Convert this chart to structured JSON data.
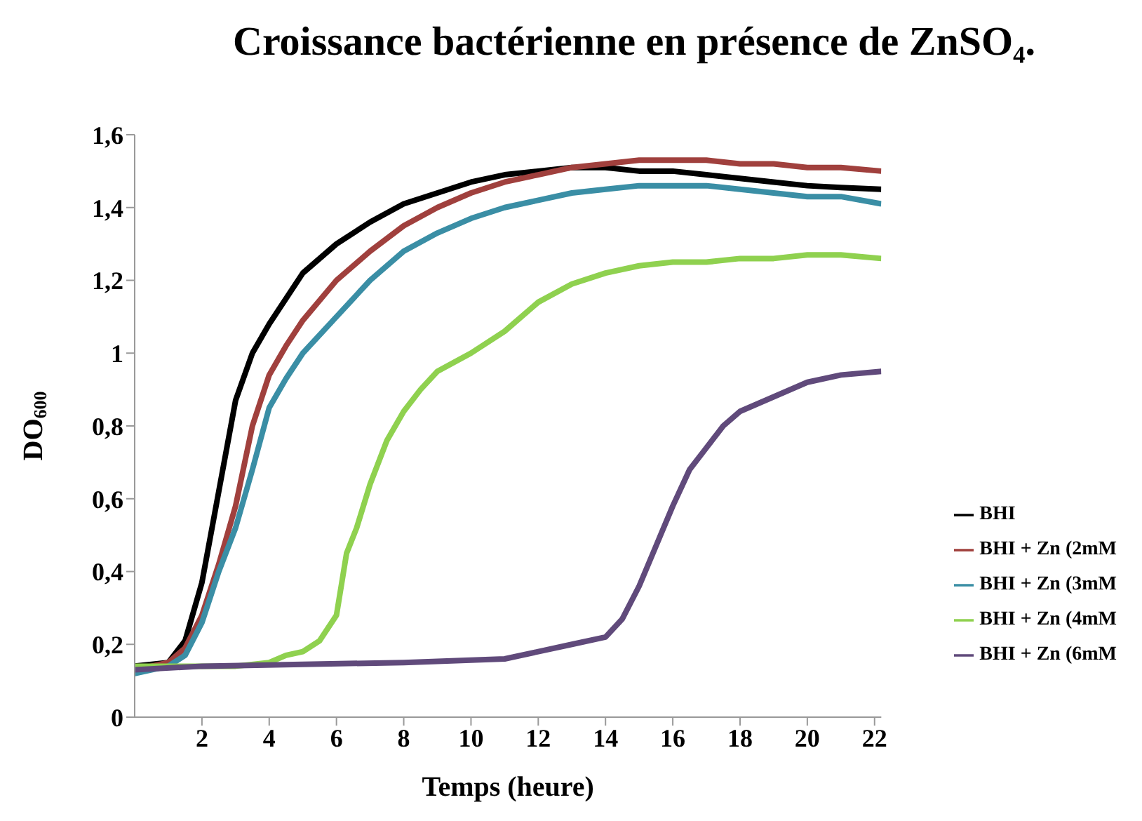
{
  "chart_data": {
    "type": "line",
    "title": "Croissance bactérienne en présence de  ZnSO₄.",
    "xlabel": "Temps (heure)",
    "ylabel": "DO$_{600}$",
    "xlim": [
      0,
      22.2
    ],
    "xticks": [
      2,
      4,
      6,
      8,
      10,
      12,
      14,
      16,
      18,
      20,
      22
    ],
    "ylim": [
      0,
      1.6
    ],
    "yticks": [
      0,
      {
        "value": 0.2,
        "label": "0,2"
      },
      {
        "value": 0.4,
        "label": "0,4"
      },
      {
        "value": 0.6,
        "label": "0,6"
      },
      {
        "value": 0.8,
        "label": "0,8"
      },
      1,
      {
        "value": 1.2,
        "label": "1,2"
      },
      {
        "value": 1.4,
        "label": "1,4"
      },
      {
        "value": 1.6,
        "label": "1,6"
      }
    ],
    "grid": false,
    "legend": "bottom right",
    "marker": "none",
    "line_style": "solid",
    "series": [
      {
        "name": "BHI",
        "color": "#000000",
        "x": [
          0,
          1,
          1.5,
          2,
          2.5,
          3,
          3.5,
          4,
          5,
          6,
          7,
          8,
          9,
          10,
          11,
          12,
          13,
          14,
          15,
          16,
          17,
          18,
          19,
          20,
          21,
          22.2
        ],
        "values": [
          0.14,
          0.15,
          0.21,
          0.37,
          0.62,
          0.87,
          1.0,
          1.08,
          1.22,
          1.3,
          1.36,
          1.41,
          1.44,
          1.47,
          1.49,
          1.5,
          1.51,
          1.51,
          1.5,
          1.5,
          1.49,
          1.48,
          1.47,
          1.46,
          1.455,
          1.45
        ]
      },
      {
        "name": "BHI + Zn (2mM",
        "color": "#a0403d",
        "x": [
          0,
          1,
          1.5,
          2,
          2.5,
          3,
          3.5,
          4,
          4.5,
          5,
          6,
          7,
          8,
          9,
          10,
          11,
          12,
          13,
          14,
          15,
          16,
          17,
          18,
          19,
          20,
          21,
          22.2
        ],
        "values": [
          0.13,
          0.15,
          0.19,
          0.28,
          0.42,
          0.58,
          0.8,
          0.94,
          1.02,
          1.09,
          1.2,
          1.28,
          1.35,
          1.4,
          1.44,
          1.47,
          1.49,
          1.51,
          1.52,
          1.53,
          1.53,
          1.53,
          1.52,
          1.52,
          1.51,
          1.51,
          1.5
        ]
      },
      {
        "name": "BHI + Zn (3mM",
        "color": "#3a8ea5",
        "x": [
          0,
          1,
          1.5,
          2,
          2.5,
          3,
          3.5,
          4,
          4.5,
          5,
          6,
          7,
          8,
          9,
          10,
          11,
          12,
          13,
          14,
          15,
          16,
          17,
          18,
          19,
          20,
          21,
          22.2
        ],
        "values": [
          0.12,
          0.14,
          0.17,
          0.26,
          0.4,
          0.52,
          0.68,
          0.85,
          0.93,
          1.0,
          1.1,
          1.2,
          1.28,
          1.33,
          1.37,
          1.4,
          1.42,
          1.44,
          1.45,
          1.46,
          1.46,
          1.46,
          1.45,
          1.44,
          1.43,
          1.43,
          1.41
        ]
      },
      {
        "name": "BHI + Zn (4mM",
        "color": "#8fd14f",
        "x": [
          0,
          3,
          4,
          4.5,
          5,
          5.5,
          6,
          6.3,
          6.6,
          7,
          7.5,
          8,
          8.5,
          9,
          10,
          11,
          12,
          13,
          14,
          15,
          16,
          17,
          18,
          19,
          20,
          21,
          22.2
        ],
        "values": [
          0.14,
          0.14,
          0.15,
          0.17,
          0.18,
          0.21,
          0.28,
          0.45,
          0.52,
          0.64,
          0.76,
          0.84,
          0.9,
          0.95,
          1.0,
          1.06,
          1.14,
          1.19,
          1.22,
          1.24,
          1.25,
          1.25,
          1.26,
          1.26,
          1.27,
          1.27,
          1.26
        ]
      },
      {
        "name": "BHI + Zn (6mM",
        "color": "#604a7b",
        "x": [
          0,
          2,
          8,
          11,
          12,
          13,
          14,
          14.5,
          15,
          15.5,
          16,
          16.5,
          17,
          17.5,
          18,
          19,
          20,
          21,
          22.2
        ],
        "values": [
          0.13,
          0.14,
          0.15,
          0.16,
          0.18,
          0.2,
          0.22,
          0.27,
          0.36,
          0.47,
          0.58,
          0.68,
          0.74,
          0.8,
          0.84,
          0.88,
          0.92,
          0.94,
          0.95
        ]
      }
    ]
  }
}
